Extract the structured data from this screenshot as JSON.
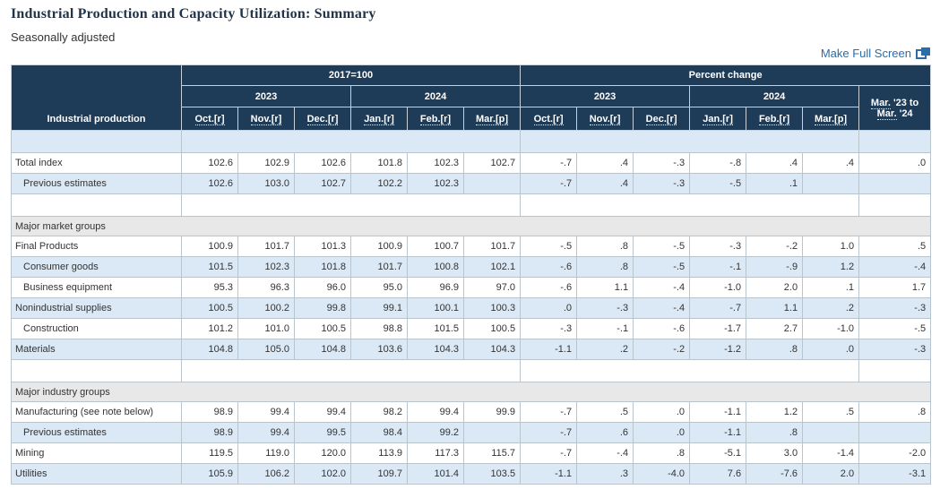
{
  "page": {
    "title": "Industrial Production and Capacity Utilization: Summary",
    "subtitle": "Seasonally adjusted",
    "fullscreen_label": "Make Full Screen",
    "fullscreen_icon": "overlapping-squares-fullscreen-icon"
  },
  "colors": {
    "header_bg": "#1e3b58",
    "row_alt_bg": "#dbe9f6",
    "section_row_bg": "#e8e8e8",
    "link_color": "#2a6da9"
  },
  "table": {
    "corner_label": "Industrial production",
    "groups": [
      "2017=100",
      "Percent change"
    ],
    "years": [
      "2023",
      "2024"
    ],
    "months": [
      "Oct.[r]",
      "Nov.[r]",
      "Dec.[r]",
      "Jan.[r]",
      "Feb.[r]",
      "Mar.[p]"
    ],
    "last_col": {
      "abbr1": "Mar.",
      "rest1": " '23 to",
      "abbr2": "Mar.",
      "rest2": " '24"
    },
    "rows": [
      {
        "type": "blank"
      },
      {
        "type": "data",
        "label": "Total index",
        "indent": false,
        "index": [
          "102.6",
          "102.9",
          "102.6",
          "101.8",
          "102.3",
          "102.7"
        ],
        "pct": [
          "-.7",
          ".4",
          "-.3",
          "-.8",
          ".4",
          ".4"
        ],
        "yoy": ".0"
      },
      {
        "type": "data",
        "label": "Previous estimates",
        "indent": true,
        "index": [
          "102.6",
          "103.0",
          "102.7",
          "102.2",
          "102.3",
          ""
        ],
        "pct": [
          "-.7",
          ".4",
          "-.3",
          "-.5",
          ".1",
          ""
        ],
        "yoy": ""
      },
      {
        "type": "blank"
      },
      {
        "type": "section",
        "label": "Major market groups"
      },
      {
        "type": "data",
        "label": "Final Products",
        "indent": false,
        "index": [
          "100.9",
          "101.7",
          "101.3",
          "100.9",
          "100.7",
          "101.7"
        ],
        "pct": [
          "-.5",
          ".8",
          "-.5",
          "-.3",
          "-.2",
          "1.0"
        ],
        "yoy": ".5"
      },
      {
        "type": "data",
        "label": "Consumer goods",
        "indent": true,
        "index": [
          "101.5",
          "102.3",
          "101.8",
          "101.7",
          "100.8",
          "102.1"
        ],
        "pct": [
          "-.6",
          ".8",
          "-.5",
          "-.1",
          "-.9",
          "1.2"
        ],
        "yoy": "-.4"
      },
      {
        "type": "data",
        "label": "Business equipment",
        "indent": true,
        "index": [
          "95.3",
          "96.3",
          "96.0",
          "95.0",
          "96.9",
          "97.0"
        ],
        "pct": [
          "-.6",
          "1.1",
          "-.4",
          "-1.0",
          "2.0",
          ".1"
        ],
        "yoy": "1.7"
      },
      {
        "type": "data",
        "label": "Nonindustrial supplies",
        "indent": false,
        "index": [
          "100.5",
          "100.2",
          "99.8",
          "99.1",
          "100.1",
          "100.3"
        ],
        "pct": [
          ".0",
          "-.3",
          "-.4",
          "-.7",
          "1.1",
          ".2"
        ],
        "yoy": "-.3"
      },
      {
        "type": "data",
        "label": "Construction",
        "indent": true,
        "index": [
          "101.2",
          "101.0",
          "100.5",
          "98.8",
          "101.5",
          "100.5"
        ],
        "pct": [
          "-.3",
          "-.1",
          "-.6",
          "-1.7",
          "2.7",
          "-1.0"
        ],
        "yoy": "-.5"
      },
      {
        "type": "data",
        "label": "Materials",
        "indent": false,
        "index": [
          "104.8",
          "105.0",
          "104.8",
          "103.6",
          "104.3",
          "104.3"
        ],
        "pct": [
          "-1.1",
          ".2",
          "-.2",
          "-1.2",
          ".8",
          ".0"
        ],
        "yoy": "-.3"
      },
      {
        "type": "blank"
      },
      {
        "type": "section",
        "label": "Major industry groups"
      },
      {
        "type": "data",
        "label": "Manufacturing (see note below)",
        "indent": false,
        "index": [
          "98.9",
          "99.4",
          "99.4",
          "98.2",
          "99.4",
          "99.9"
        ],
        "pct": [
          "-.7",
          ".5",
          ".0",
          "-1.1",
          "1.2",
          ".5"
        ],
        "yoy": ".8"
      },
      {
        "type": "data",
        "label": "Previous estimates",
        "indent": true,
        "index": [
          "98.9",
          "99.4",
          "99.5",
          "98.4",
          "99.2",
          ""
        ],
        "pct": [
          "-.7",
          ".6",
          ".0",
          "-1.1",
          ".8",
          ""
        ],
        "yoy": ""
      },
      {
        "type": "data",
        "label": "Mining",
        "indent": false,
        "index": [
          "119.5",
          "119.0",
          "120.0",
          "113.9",
          "117.3",
          "115.7"
        ],
        "pct": [
          "-.7",
          "-.4",
          ".8",
          "-5.1",
          "3.0",
          "-1.4"
        ],
        "yoy": "-2.0"
      },
      {
        "type": "data",
        "label": "Utilities",
        "indent": false,
        "index": [
          "105.9",
          "106.2",
          "102.0",
          "109.7",
          "101.4",
          "103.5"
        ],
        "pct": [
          "-1.1",
          ".3",
          "-4.0",
          "7.6",
          "-7.6",
          "2.0"
        ],
        "yoy": "-3.1"
      }
    ]
  }
}
